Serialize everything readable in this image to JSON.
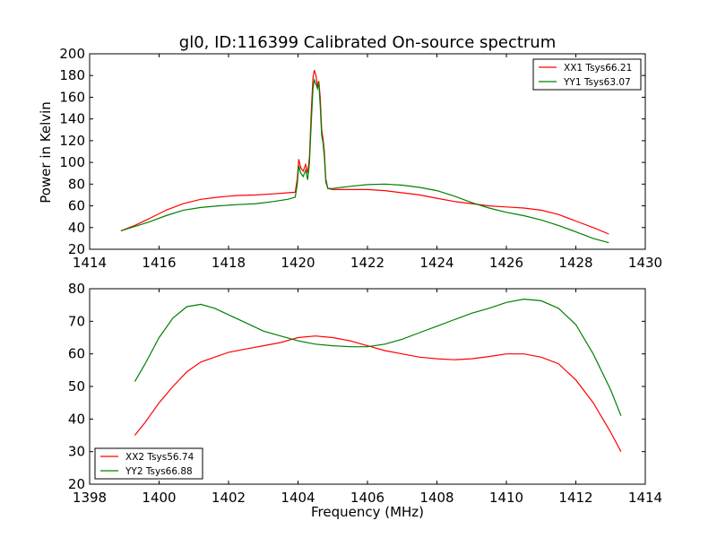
{
  "chart_data": [
    {
      "type": "line",
      "title": "gl0, ID:116399 Calibrated On-source spectrum",
      "xlabel": "",
      "ylabel": "Power in Kelvin",
      "xlim": [
        1414,
        1430
      ],
      "ylim": [
        20,
        200
      ],
      "xticks": [
        1414,
        1416,
        1418,
        1420,
        1422,
        1424,
        1426,
        1428,
        1430
      ],
      "yticks": [
        20,
        40,
        60,
        80,
        100,
        120,
        140,
        160,
        180,
        200
      ],
      "legend_position": "top-right",
      "grid": false,
      "series": [
        {
          "name": "XX1 Tsys66.21",
          "color": "#ff0000",
          "points": [
            [
              1414.9,
              37
            ],
            [
              1415.3,
              42
            ],
            [
              1415.7,
              48
            ],
            [
              1416.2,
              56
            ],
            [
              1416.7,
              62
            ],
            [
              1417.2,
              66
            ],
            [
              1417.7,
              68
            ],
            [
              1418.2,
              69.5
            ],
            [
              1418.8,
              70
            ],
            [
              1419.3,
              71
            ],
            [
              1419.7,
              72
            ],
            [
              1419.92,
              72.5
            ],
            [
              1419.98,
              85
            ],
            [
              1420.02,
              103
            ],
            [
              1420.08,
              95
            ],
            [
              1420.15,
              92
            ],
            [
              1420.22,
              98
            ],
            [
              1420.28,
              90
            ],
            [
              1420.33,
              105
            ],
            [
              1420.38,
              145
            ],
            [
              1420.43,
              178
            ],
            [
              1420.47,
              185
            ],
            [
              1420.52,
              180
            ],
            [
              1420.56,
              170
            ],
            [
              1420.6,
              175
            ],
            [
              1420.64,
              160
            ],
            [
              1420.68,
              130
            ],
            [
              1420.72,
              122
            ],
            [
              1420.76,
              110
            ],
            [
              1420.8,
              85
            ],
            [
              1420.86,
              76
            ],
            [
              1421,
              75
            ],
            [
              1421.5,
              75
            ],
            [
              1422,
              75
            ],
            [
              1422.5,
              74
            ],
            [
              1423,
              72
            ],
            [
              1423.5,
              70
            ],
            [
              1424,
              67
            ],
            [
              1424.5,
              64
            ],
            [
              1425,
              62
            ],
            [
              1425.5,
              60
            ],
            [
              1426,
              59
            ],
            [
              1426.5,
              58
            ],
            [
              1427,
              56
            ],
            [
              1427.5,
              52
            ],
            [
              1428,
              46
            ],
            [
              1428.5,
              40
            ],
            [
              1428.95,
              34
            ]
          ]
        },
        {
          "name": "YY1 Tsys63.07",
          "color": "#008000",
          "points": [
            [
              1414.9,
              37
            ],
            [
              1415.3,
              41
            ],
            [
              1415.7,
              45
            ],
            [
              1416.2,
              51
            ],
            [
              1416.7,
              56
            ],
            [
              1417.2,
              58.5
            ],
            [
              1417.7,
              60
            ],
            [
              1418.2,
              61
            ],
            [
              1418.8,
              62
            ],
            [
              1419.3,
              64
            ],
            [
              1419.7,
              66
            ],
            [
              1419.92,
              68
            ],
            [
              1419.98,
              80
            ],
            [
              1420.02,
              97
            ],
            [
              1420.08,
              90
            ],
            [
              1420.15,
              87
            ],
            [
              1420.22,
              93
            ],
            [
              1420.28,
              84
            ],
            [
              1420.33,
              100
            ],
            [
              1420.38,
              135
            ],
            [
              1420.43,
              168
            ],
            [
              1420.47,
              176
            ],
            [
              1420.52,
              172
            ],
            [
              1420.56,
              168
            ],
            [
              1420.6,
              173
            ],
            [
              1420.64,
              152
            ],
            [
              1420.68,
              125
            ],
            [
              1420.72,
              118
            ],
            [
              1420.76,
              105
            ],
            [
              1420.8,
              82
            ],
            [
              1420.86,
              76
            ],
            [
              1421,
              76
            ],
            [
              1421.5,
              78
            ],
            [
              1422,
              79.5
            ],
            [
              1422.5,
              80
            ],
            [
              1423,
              79
            ],
            [
              1423.5,
              77
            ],
            [
              1424,
              74
            ],
            [
              1424.5,
              69
            ],
            [
              1425,
              63
            ],
            [
              1425.5,
              58
            ],
            [
              1426,
              54
            ],
            [
              1426.5,
              51
            ],
            [
              1427,
              47
            ],
            [
              1427.5,
              42
            ],
            [
              1428,
              36
            ],
            [
              1428.5,
              30
            ],
            [
              1428.95,
              26
            ]
          ]
        }
      ]
    },
    {
      "type": "line",
      "title": "",
      "xlabel": "Frequency (MHz)",
      "ylabel": "",
      "xlim": [
        1398,
        1414
      ],
      "ylim": [
        20,
        80
      ],
      "xticks": [
        1398,
        1400,
        1402,
        1404,
        1406,
        1408,
        1410,
        1412,
        1414
      ],
      "yticks": [
        20,
        30,
        40,
        50,
        60,
        70,
        80
      ],
      "legend_position": "bottom-left",
      "grid": false,
      "series": [
        {
          "name": "XX2 Tsys56.74",
          "color": "#ff0000",
          "points": [
            [
              1399.3,
              35
            ],
            [
              1399.6,
              39
            ],
            [
              1400,
              45
            ],
            [
              1400.4,
              50
            ],
            [
              1400.8,
              54.5
            ],
            [
              1401.2,
              57.5
            ],
            [
              1401.6,
              59
            ],
            [
              1402,
              60.5
            ],
            [
              1402.5,
              61.5
            ],
            [
              1403,
              62.5
            ],
            [
              1403.5,
              63.5
            ],
            [
              1404,
              65
            ],
            [
              1404.5,
              65.5
            ],
            [
              1405,
              65
            ],
            [
              1405.5,
              64
            ],
            [
              1406,
              62.5
            ],
            [
              1406.5,
              61
            ],
            [
              1407,
              60
            ],
            [
              1407.5,
              59
            ],
            [
              1408,
              58.5
            ],
            [
              1408.5,
              58.2
            ],
            [
              1409,
              58.5
            ],
            [
              1409.5,
              59.2
            ],
            [
              1410,
              60
            ],
            [
              1410.5,
              60
            ],
            [
              1411,
              59
            ],
            [
              1411.5,
              57
            ],
            [
              1412,
              52
            ],
            [
              1412.5,
              45
            ],
            [
              1413,
              36
            ],
            [
              1413.3,
              30
            ]
          ]
        },
        {
          "name": "YY2 Tsys66.88",
          "color": "#008000",
          "points": [
            [
              1399.3,
              51.5
            ],
            [
              1399.6,
              57
            ],
            [
              1400,
              65
            ],
            [
              1400.4,
              71
            ],
            [
              1400.8,
              74.5
            ],
            [
              1401.2,
              75.2
            ],
            [
              1401.6,
              74
            ],
            [
              1402,
              72
            ],
            [
              1402.5,
              69.5
            ],
            [
              1403,
              67
            ],
            [
              1403.5,
              65.5
            ],
            [
              1404,
              64
            ],
            [
              1404.5,
              63
            ],
            [
              1405,
              62.5
            ],
            [
              1405.5,
              62.2
            ],
            [
              1406,
              62.2
            ],
            [
              1406.5,
              63
            ],
            [
              1407,
              64.5
            ],
            [
              1407.5,
              66.5
            ],
            [
              1408,
              68.5
            ],
            [
              1408.5,
              70.5
            ],
            [
              1409,
              72.5
            ],
            [
              1409.5,
              74
            ],
            [
              1410,
              75.8
            ],
            [
              1410.5,
              76.8
            ],
            [
              1411,
              76.3
            ],
            [
              1411.5,
              74
            ],
            [
              1412,
              69
            ],
            [
              1412.5,
              60
            ],
            [
              1413,
              49
            ],
            [
              1413.3,
              41
            ]
          ]
        }
      ]
    }
  ]
}
